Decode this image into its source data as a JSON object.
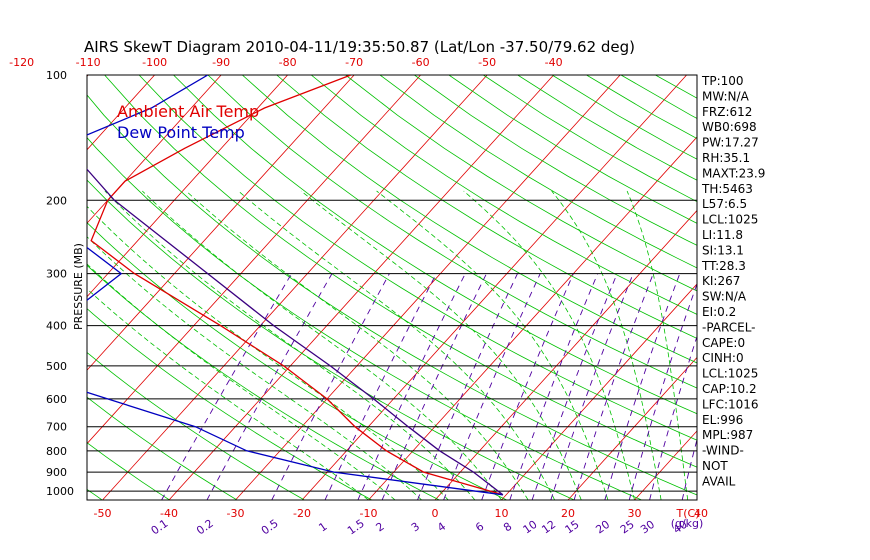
{
  "chart_data": {
    "type": "skewt",
    "title": "AIRS SkewT Diagram 2010-04-11/19:35:50.87 (Lat/Lon -37.50/79.62 deg)",
    "ylabel": "PRESSURE (MB)",
    "y_scale": "log",
    "ylim": [
      1050,
      100
    ],
    "pressure_ticks": [
      100,
      200,
      300,
      400,
      500,
      600,
      700,
      800,
      900,
      1000
    ],
    "pressure_tick_labels": [
      "100",
      "200",
      "300",
      "400",
      "500",
      "600",
      "700",
      "800",
      "900",
      "1000"
    ],
    "top_temp_labels": [
      "-120",
      "-110",
      "-100",
      "-90",
      "-80",
      "-70",
      "-60",
      "-50",
      "-40"
    ],
    "bottom_temp_labels": [
      "-50",
      "-40",
      "-30",
      "-20",
      "-10",
      "0",
      "10",
      "20",
      "30",
      "40"
    ],
    "bottom_temp_unit": "T(C)",
    "mixing_ratio_labels": [
      "0.1",
      "0.2",
      "0.5",
      "1",
      "1.5",
      "2",
      "3",
      "4",
      "6",
      "8",
      "10",
      "12",
      "15",
      "20",
      "25",
      "30",
      "40"
    ],
    "mixing_ratio_unit": "(g/kg)",
    "legend": {
      "placement": "top-left"
    },
    "series": [
      {
        "name": "Ambient Air Temp",
        "color": "#e00000",
        "points": [
          [
            100,
            -70.5
          ],
          [
            120,
            -79
          ],
          [
            150,
            -85.5
          ],
          [
            180,
            -90
          ],
          [
            200,
            -90
          ],
          [
            250,
            -87
          ],
          [
            300,
            -76
          ],
          [
            400,
            -56
          ],
          [
            500,
            -41
          ],
          [
            600,
            -30
          ],
          [
            700,
            -22
          ],
          [
            800,
            -14
          ],
          [
            900,
            -5.5
          ],
          [
            1020,
            9.5
          ]
        ]
      },
      {
        "name": "Dew Point Temp",
        "color": "#0000c0",
        "points": [
          [
            100,
            -92
          ],
          [
            120,
            -96
          ],
          [
            150,
            -105
          ],
          [
            200,
            -103
          ],
          [
            250,
            -89
          ],
          [
            300,
            -78
          ],
          [
            400,
            -81
          ],
          [
            500,
            -83
          ],
          [
            600,
            -63
          ],
          [
            700,
            -46
          ],
          [
            800,
            -35
          ],
          [
            900,
            -19
          ],
          [
            1020,
            9.5
          ]
        ]
      },
      {
        "name": "",
        "color": "#3a0080",
        "points": [
          [
            100,
            -120
          ],
          [
            150,
            -103
          ],
          [
            200,
            -89
          ],
          [
            300,
            -65
          ],
          [
            400,
            -48
          ],
          [
            500,
            -34
          ],
          [
            600,
            -23
          ],
          [
            700,
            -14
          ],
          [
            800,
            -6
          ],
          [
            900,
            2
          ],
          [
            1020,
            9.5
          ]
        ]
      }
    ],
    "isobar_color": "#000000",
    "isotherm_color": "#e00000",
    "dry_adiabat_color": "#00c000",
    "moist_adiabat_color": "#00c000",
    "mixing_ratio_color": "#5000a0"
  },
  "indices": [
    "TP:100",
    "MW:N/A",
    "FRZ:612",
    "WB0:698",
    "PW:17.27",
    "RH:35.1",
    "MAXT:23.9",
    "TH:5463",
    "L57:6.5",
    "LCL:1025",
    "LI:11.8",
    "SI:13.1",
    "TT:28.3",
    "KI:267",
    "SW:N/A",
    "EI:0.2",
    "-PARCEL-",
    "CAPE:0",
    "CINH:0",
    "LCL:1025",
    "CAP:10.2",
    "LFC:1016",
    "EL:996",
    "MPL:987",
    "-WIND-",
    "NOT",
    "AVAIL"
  ]
}
